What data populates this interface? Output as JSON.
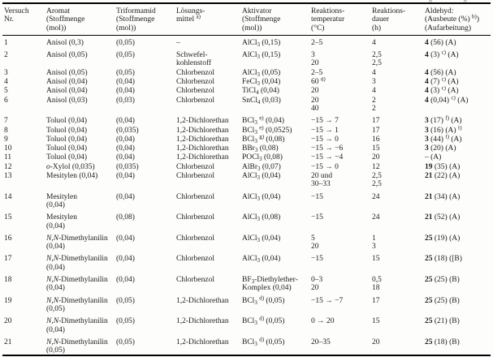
{
  "artifacts": {
    "top_edge_fragment": "g g"
  },
  "table": {
    "columns": [
      {
        "id": "versuch",
        "lines": [
          "Versuch",
          "Nr."
        ]
      },
      {
        "id": "aromat",
        "lines": [
          "Aromat",
          "(Stoffmenge",
          "(mol))"
        ]
      },
      {
        "id": "triformamid",
        "lines": [
          "Triformamid",
          "(Stoffmenge",
          "(mol))"
        ]
      },
      {
        "id": "loesungsmittel",
        "lines": [
          "Lösungs-",
          "mittel ^{a)}"
        ]
      },
      {
        "id": "aktivator",
        "lines": [
          "Aktivator",
          "(Stoffmenge",
          "(mol))"
        ]
      },
      {
        "id": "temperatur",
        "lines": [
          "Reaktions-",
          "temperatur",
          "(°C)"
        ]
      },
      {
        "id": "dauer",
        "lines": [
          "Reaktions-",
          "dauer",
          "(h)"
        ]
      },
      {
        "id": "aldehyd",
        "lines": [
          "Aldehyd:",
          "(Ausbeute (%) ^{b)})",
          "(Aufarbeitung)"
        ]
      }
    ],
    "rows": [
      {
        "sp": false,
        "cells": [
          [
            "1"
          ],
          [
            "Anisol (0,3)"
          ],
          [
            "(0,05)"
          ],
          [
            "–"
          ],
          [
            "AlCl_{3} (0,15)"
          ],
          [
            "2–5"
          ],
          [
            "4"
          ],
          [
            "**4** (56) (A)"
          ]
        ]
      },
      {
        "sp": true,
        "cells": [
          [
            "2"
          ],
          [
            "Anisol (0,05)"
          ],
          [
            "(0,05)"
          ],
          [
            "Schwefel-",
            "kohlenstoff"
          ],
          [
            "AlCl_{3} (0,15)"
          ],
          [
            "3",
            "20"
          ],
          [
            "2,5",
            "2,5"
          ],
          [
            "**4** (3) ^{c)} (A)"
          ]
        ]
      },
      {
        "sp": false,
        "cells": [
          [
            "3"
          ],
          [
            "Anisol (0,05)"
          ],
          [
            "(0,05)"
          ],
          [
            "Chlorbenzol"
          ],
          [
            "AlCl_{3} (0,05)"
          ],
          [
            "2–5"
          ],
          [
            "4"
          ],
          [
            "**4** (56) (A)"
          ]
        ]
      },
      {
        "sp": false,
        "cells": [
          [
            "4"
          ],
          [
            "Anisol (0,04)"
          ],
          [
            "(0,04)"
          ],
          [
            "Chlorbenzol"
          ],
          [
            "FeCl_{3} (0,04)"
          ],
          [
            "60 ^{d)}"
          ],
          [
            "3"
          ],
          [
            "**4** (7) ^{c)} (A)"
          ]
        ]
      },
      {
        "sp": false,
        "cells": [
          [
            "5"
          ],
          [
            "Anisol (0,04)"
          ],
          [
            "(0,04)"
          ],
          [
            "Chlorbenzol"
          ],
          [
            "TiCl_{4} (0,04)"
          ],
          [
            "20"
          ],
          [
            "4"
          ],
          [
            "**4** (3) ^{c)} (A)"
          ]
        ]
      },
      {
        "sp": false,
        "cells": [
          [
            "6"
          ],
          [
            "Anisol (0,03)"
          ],
          [
            "(0,03)"
          ],
          [
            "Chlorbenzol"
          ],
          [
            "SnCl_{4} (0,03)"
          ],
          [
            "20",
            "40"
          ],
          [
            "2",
            "2"
          ],
          [
            "**4** (0,04) ^{c)} (A)"
          ]
        ]
      },
      {
        "sp": true,
        "cells": [
          [
            "7"
          ],
          [
            "Toluol (0,04)"
          ],
          [
            "(0,04)"
          ],
          [
            "1,2-Dichlorethan"
          ],
          [
            "BCl_{3} ^{e)} (0,04)"
          ],
          [
            "−15 → 7"
          ],
          [
            "17"
          ],
          [
            "**3** (17) ^{f)} (A)"
          ]
        ]
      },
      {
        "sp": false,
        "cells": [
          [
            "8"
          ],
          [
            "Toluol (0,04)"
          ],
          [
            "(0,035)"
          ],
          [
            "1,2-Dichlorethan"
          ],
          [
            "BCl_{3} ^{e)} (0,0525)"
          ],
          [
            "−15 → 1"
          ],
          [
            "17"
          ],
          [
            "**3** (16) (A) ^{f)}"
          ]
        ]
      },
      {
        "sp": false,
        "cells": [
          [
            "9"
          ],
          [
            "Toluol (0,04)"
          ],
          [
            "(0,04)"
          ],
          [
            "1,2-Dichlorethan"
          ],
          [
            "BCl_{3} ^{g)} (0,08)"
          ],
          [
            "−15 → 0"
          ],
          [
            "16"
          ],
          [
            "**3** (44) ^{f)} (A)"
          ]
        ]
      },
      {
        "sp": false,
        "cells": [
          [
            "10"
          ],
          [
            "Toluol (0,04)"
          ],
          [
            "(0,04)"
          ],
          [
            "1,2-Dichlorethan"
          ],
          [
            "BBr_{3} (0,08)"
          ],
          [
            "−15 → −6"
          ],
          [
            "15"
          ],
          [
            "**3** (20) (A)"
          ]
        ]
      },
      {
        "sp": false,
        "cells": [
          [
            "11"
          ],
          [
            "Toluol (0,04)"
          ],
          [
            "(0,04)"
          ],
          [
            "1,2-Dichlorethan"
          ],
          [
            "POCl_{3} (0,08)"
          ],
          [
            "−15 → −4"
          ],
          [
            "20"
          ],
          [
            "– (A)"
          ]
        ]
      },
      {
        "sp": false,
        "cells": [
          [
            "12"
          ],
          [
            "*o*-Xylol (0,035)"
          ],
          [
            "(0,035)"
          ],
          [
            "Chlorbenzol"
          ],
          [
            "AlBr_{3} (0,07)"
          ],
          [
            "−15 → 0"
          ],
          [
            "12"
          ],
          [
            "**19** (35) (A)"
          ]
        ]
      },
      {
        "sp": false,
        "cells": [
          [
            "13"
          ],
          [
            "Mesitylen (0,04)"
          ],
          [
            "(0,04)"
          ],
          [
            "Chlorbenzol"
          ],
          [
            "AlCl_{3} (0,04)"
          ],
          [
            "20 und",
            "30–33"
          ],
          [
            "2,5",
            "2,5"
          ],
          [
            "**21** (22) (A)"
          ]
        ]
      },
      {
        "sp": true,
        "cells": [
          [
            "14"
          ],
          [
            "Mesitylen",
            "(0,04)"
          ],
          [
            "(0,04)"
          ],
          [
            "Chlorbenzol"
          ],
          [
            "AlCl_{3} (0,04)"
          ],
          [
            "−15"
          ],
          [
            "24"
          ],
          [
            "**21** (34) (A)"
          ]
        ]
      },
      {
        "sp": true,
        "cells": [
          [
            "15"
          ],
          [
            "Mesitylen",
            "(0,04)"
          ],
          [
            "(0,08)"
          ],
          [
            "Chlorbenzol"
          ],
          [
            "AlCl_{3} (0,08)"
          ],
          [
            "−15"
          ],
          [
            "24"
          ],
          [
            "**21** (52) (A)"
          ]
        ]
      },
      {
        "sp": true,
        "cells": [
          [
            "16"
          ],
          [
            "*N,N*-Dimethylanilin",
            "(0,04)"
          ],
          [
            "(0,04)"
          ],
          [
            "Chlorbenzol"
          ],
          [
            "AlCl_{3} (0,04)"
          ],
          [
            "5",
            "20"
          ],
          [
            "1",
            "3"
          ],
          [
            "**25** (19) (A)"
          ]
        ]
      },
      {
        "sp": true,
        "cells": [
          [
            "17"
          ],
          [
            "*N,N*-Dimethylanilin",
            "(0,04)"
          ],
          [
            "(0,04)"
          ],
          [
            "Chlorbenzol"
          ],
          [
            "AlCl_{3} (0,04)"
          ],
          [
            "−15"
          ],
          [
            "15"
          ],
          [
            "**25** (18) ([B)"
          ]
        ]
      },
      {
        "sp": true,
        "cells": [
          [
            "18"
          ],
          [
            "*N,N*-Dimethylanilin",
            "(0,04)"
          ],
          [
            "(0,04)"
          ],
          [
            "Chlorbenzol"
          ],
          [
            "BF_{3}-Diethylether-",
            "Komplex (0,04)"
          ],
          [
            "0–3",
            "20"
          ],
          [
            "0,5",
            "18"
          ],
          [
            "**25** (25) (B)"
          ]
        ]
      },
      {
        "sp": true,
        "cells": [
          [
            "19"
          ],
          [
            "*N,N*-Dimethylanilin",
            "(0,05)"
          ],
          [
            "(0,05)"
          ],
          [
            "1,2-Dichlorethan"
          ],
          [
            "BCl_{3} ^{d)} (0,05)"
          ],
          [
            "−15 → −7"
          ],
          [
            "17"
          ],
          [
            "**25** (25) (B)"
          ]
        ]
      },
      {
        "sp": true,
        "cells": [
          [
            "20"
          ],
          [
            "*N,N*-Dimethylanilin",
            "(0,04)"
          ],
          [
            "(0,05)"
          ],
          [
            "1,2-Dichlorethan"
          ],
          [
            "BCl_{3} ^{d)} (0,05)"
          ],
          [
            "0 → 20"
          ],
          [
            "15"
          ],
          [
            "**25** (21) (B)"
          ]
        ]
      },
      {
        "sp": true,
        "cells": [
          [
            "21"
          ],
          [
            "*N,N*-Dimethylanilin",
            "(0,05)"
          ],
          [
            "(0,05)"
          ],
          [
            "1,2-Dichlorethan"
          ],
          [
            "BCl_{3} ^{d)} (0,05)"
          ],
          [
            "20–35"
          ],
          [
            "20"
          ],
          [
            "**25** (18) (B)"
          ]
        ]
      }
    ]
  }
}
